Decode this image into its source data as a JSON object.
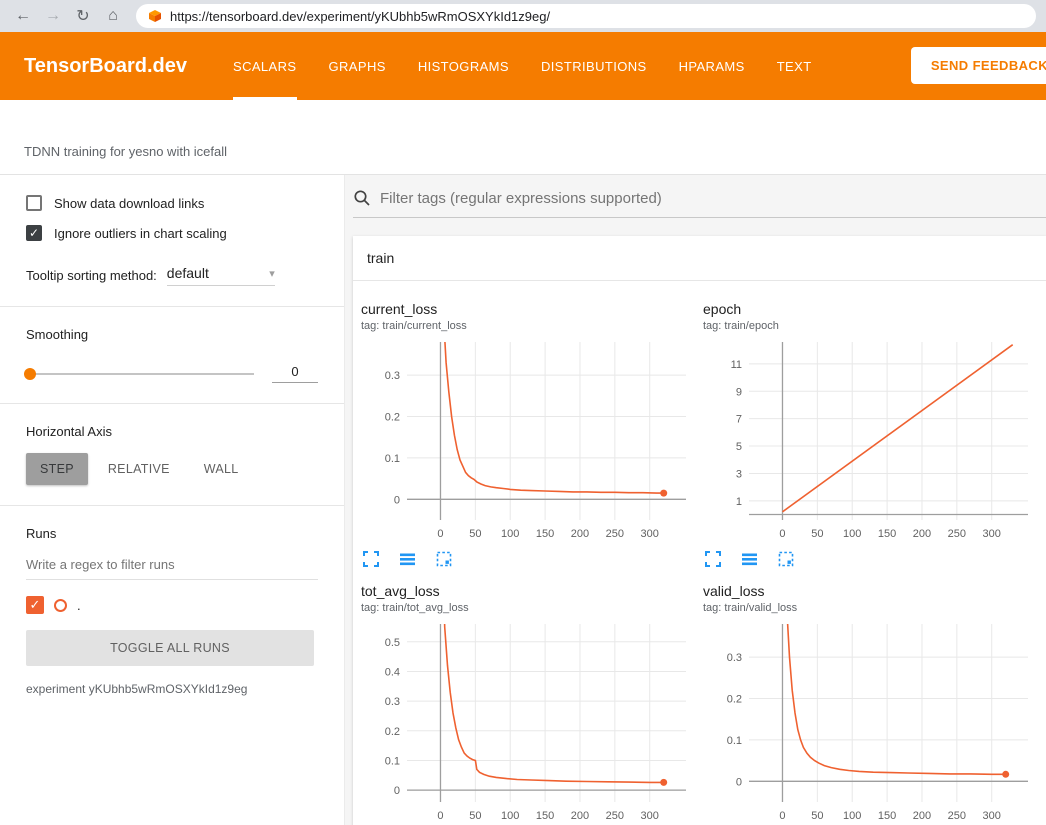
{
  "browser": {
    "url": "https://tensorboard.dev/experiment/yKUbhb5wRmOSXYkId1z9eg/"
  },
  "icons": {
    "back": "←",
    "forward": "→",
    "reload": "↻",
    "home": "⌂",
    "check": "✓",
    "dropdown_caret": "▾",
    "search": "magnifier-icon",
    "expand": "fullscreen-corners-icon",
    "data_table": "list-lines-icon",
    "fit": "dashed-box-fit-icon",
    "favicon": "tensorboard-orange-cube"
  },
  "colors": {
    "accent_orange": "#f57c00",
    "run_color": "#ef6130",
    "icon_blue": "#2196f3"
  },
  "header": {
    "brand": "TensorBoard.dev",
    "tabs": [
      {
        "label": "SCALARS",
        "active": true
      },
      {
        "label": "GRAPHS",
        "active": false
      },
      {
        "label": "HISTOGRAMS",
        "active": false
      },
      {
        "label": "DISTRIBUTIONS",
        "active": false
      },
      {
        "label": "HPARAMS",
        "active": false
      },
      {
        "label": "TEXT",
        "active": false
      }
    ],
    "feedback_label": "SEND FEEDBACK"
  },
  "subheader": {
    "experiment_title": "TDNN training for yesno with icefall"
  },
  "sidebar": {
    "show_download": {
      "label": "Show data download links",
      "checked": false
    },
    "ignore_outliers": {
      "label": "Ignore outliers in chart scaling",
      "checked": true
    },
    "tooltip_sorting": {
      "label": "Tooltip sorting method:",
      "value": "default"
    },
    "smoothing": {
      "label": "Smoothing",
      "value": "0"
    },
    "horizontal_axis": {
      "label": "Horizontal Axis",
      "options": [
        "STEP",
        "RELATIVE",
        "WALL"
      ],
      "selected": "STEP"
    },
    "runs": {
      "label": "Runs",
      "filter_placeholder": "Write a regex to filter runs",
      "items": [
        {
          "name": ".",
          "checked": true,
          "color": "#ef6130"
        }
      ],
      "toggle_all_label": "TOGGLE ALL RUNS",
      "experiment_label": "experiment yKUbhb5wRmOSXYkId1z9eg"
    }
  },
  "main": {
    "filter_placeholder": "Filter tags (regular expressions supported)",
    "group_label": "train"
  },
  "chart_data": [
    {
      "type": "line",
      "title": "current_loss",
      "tag": "tag: train/current_loss",
      "xlim": [
        -48,
        352
      ],
      "ylim": [
        -0.05,
        0.38
      ],
      "xticks": [
        0,
        50,
        100,
        150,
        200,
        250,
        300
      ],
      "yticks": [
        0,
        0.1,
        0.2,
        0.3
      ],
      "grid": true,
      "end_marker": true,
      "series": [
        {
          "name": ".",
          "color": "#ef6130",
          "points": [
            [
              3,
              0.6
            ],
            [
              4,
              0.45
            ],
            [
              8,
              0.33
            ],
            [
              12,
              0.26
            ],
            [
              16,
              0.2
            ],
            [
              20,
              0.155
            ],
            [
              24,
              0.12
            ],
            [
              28,
              0.095
            ],
            [
              32,
              0.08
            ],
            [
              36,
              0.065
            ],
            [
              40,
              0.057
            ],
            [
              44,
              0.052
            ],
            [
              48,
              0.048
            ],
            [
              52,
              0.042
            ],
            [
              58,
              0.037
            ],
            [
              64,
              0.033
            ],
            [
              72,
              0.03
            ],
            [
              80,
              0.028
            ],
            [
              90,
              0.026
            ],
            [
              100,
              0.024
            ],
            [
              115,
              0.022
            ],
            [
              130,
              0.021
            ],
            [
              150,
              0.02
            ],
            [
              170,
              0.019
            ],
            [
              190,
              0.018
            ],
            [
              210,
              0.018
            ],
            [
              230,
              0.017
            ],
            [
              250,
              0.017
            ],
            [
              270,
              0.016
            ],
            [
              290,
              0.016
            ],
            [
              310,
              0.015
            ],
            [
              320,
              0.015
            ]
          ]
        }
      ]
    },
    {
      "type": "line",
      "title": "epoch",
      "tag": "tag: train/epoch",
      "xlim": [
        -48,
        352
      ],
      "ylim": [
        -0.4,
        12.6
      ],
      "xticks": [
        0,
        50,
        100,
        150,
        200,
        250,
        300
      ],
      "yticks": [
        1,
        3,
        5,
        7,
        9,
        11
      ],
      "grid": true,
      "end_marker": false,
      "series": [
        {
          "name": ".",
          "color": "#ef6130",
          "points": [
            [
              0,
              0.2
            ],
            [
              330,
              12.4
            ]
          ]
        }
      ]
    },
    {
      "type": "line",
      "title": "tot_avg_loss",
      "tag": "tag: train/tot_avg_loss",
      "xlim": [
        -48,
        352
      ],
      "ylim": [
        -0.04,
        0.56
      ],
      "xticks": [
        0,
        50,
        100,
        150,
        200,
        250,
        300
      ],
      "yticks": [
        0,
        0.1,
        0.2,
        0.3,
        0.4,
        0.5
      ],
      "grid": true,
      "end_marker": true,
      "series": [
        {
          "name": ".",
          "color": "#ef6130",
          "points": [
            [
              3,
              0.8
            ],
            [
              6,
              0.55
            ],
            [
              10,
              0.42
            ],
            [
              14,
              0.33
            ],
            [
              18,
              0.26
            ],
            [
              22,
              0.21
            ],
            [
              26,
              0.17
            ],
            [
              30,
              0.145
            ],
            [
              34,
              0.125
            ],
            [
              38,
              0.115
            ],
            [
              42,
              0.108
            ],
            [
              46,
              0.103
            ],
            [
              50,
              0.1
            ],
            [
              52,
              0.07
            ],
            [
              56,
              0.06
            ],
            [
              62,
              0.053
            ],
            [
              70,
              0.047
            ],
            [
              80,
              0.043
            ],
            [
              95,
              0.039
            ],
            [
              110,
              0.036
            ],
            [
              130,
              0.034
            ],
            [
              155,
              0.032
            ],
            [
              180,
              0.03
            ],
            [
              210,
              0.029
            ],
            [
              240,
              0.028
            ],
            [
              270,
              0.027
            ],
            [
              300,
              0.026
            ],
            [
              320,
              0.026
            ]
          ]
        }
      ]
    },
    {
      "type": "line",
      "title": "valid_loss",
      "tag": "tag: train/valid_loss",
      "xlim": [
        -48,
        352
      ],
      "ylim": [
        -0.05,
        0.38
      ],
      "xticks": [
        0,
        50,
        100,
        150,
        200,
        250,
        300
      ],
      "yticks": [
        0,
        0.1,
        0.2,
        0.3
      ],
      "grid": true,
      "end_marker": true,
      "series": [
        {
          "name": ".",
          "color": "#ef6130",
          "points": [
            [
              3,
              0.6
            ],
            [
              6,
              0.42
            ],
            [
              10,
              0.3
            ],
            [
              14,
              0.22
            ],
            [
              18,
              0.165
            ],
            [
              22,
              0.125
            ],
            [
              26,
              0.1
            ],
            [
              30,
              0.082
            ],
            [
              35,
              0.068
            ],
            [
              40,
              0.058
            ],
            [
              46,
              0.05
            ],
            [
              52,
              0.044
            ],
            [
              60,
              0.038
            ],
            [
              70,
              0.033
            ],
            [
              82,
              0.029
            ],
            [
              95,
              0.026
            ],
            [
              110,
              0.024
            ],
            [
              130,
              0.022
            ],
            [
              155,
              0.021
            ],
            [
              180,
              0.02
            ],
            [
              210,
              0.019
            ],
            [
              240,
              0.018
            ],
            [
              270,
              0.018
            ],
            [
              300,
              0.017
            ],
            [
              320,
              0.017
            ]
          ]
        }
      ]
    }
  ]
}
